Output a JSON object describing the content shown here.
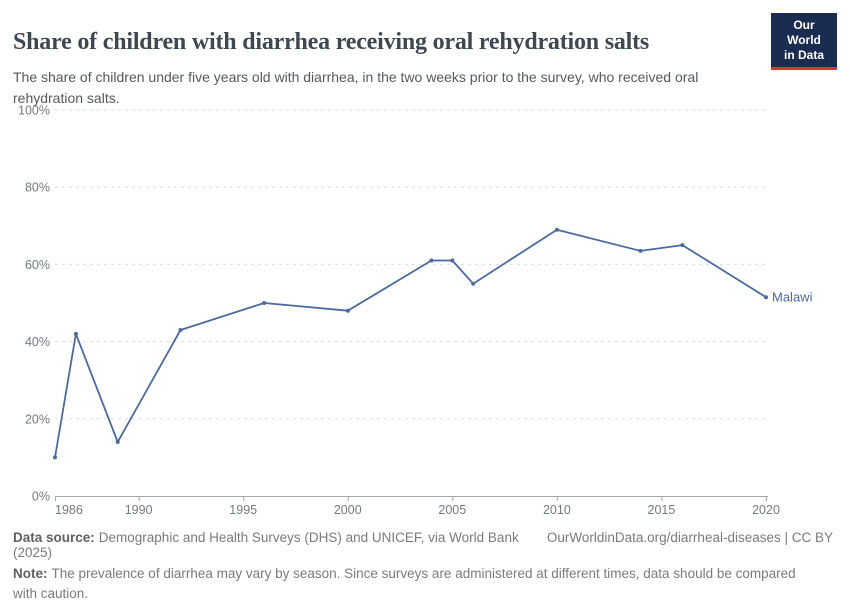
{
  "header": {
    "title": "Share of children with diarrhea receiving oral rehydration salts",
    "subtitle": "The share of children under five years old with diarrhea, in the two weeks prior to the survey, who received oral rehydration salts.",
    "logo_line1": "Our World",
    "logo_line2": "in Data"
  },
  "chart_data": {
    "type": "line",
    "title": "Share of children with diarrhea receiving oral rehydration salts",
    "subtitle": "The share of children under five years old with diarrhea, in the two weeks prior to the survey, who received oral rehydration salts.",
    "series": [
      {
        "name": "Malawi",
        "x": [
          1986,
          1987,
          1989,
          1992,
          1996,
          2000,
          2004,
          2005,
          2006,
          2010,
          2014,
          2016,
          2020
        ],
        "values": [
          10,
          42,
          14,
          43,
          50,
          48,
          61,
          61,
          55,
          69,
          63.5,
          65,
          51.5
        ]
      }
    ],
    "xlabel": "",
    "ylabel": "",
    "xlim": [
      1986,
      2020
    ],
    "ylim": [
      0,
      100
    ],
    "x_ticks": [
      1986,
      1990,
      1995,
      2000,
      2005,
      2010,
      2015,
      2020
    ],
    "y_ticks": [
      0,
      20,
      40,
      60,
      80,
      100
    ],
    "y_tick_suffix": "%",
    "grid": "horizontal-dashed",
    "legend_position": "end-of-line-label",
    "end_label": "Malawi"
  },
  "colors": {
    "line": "#4C6A9C",
    "gridline": "#dcdcdc",
    "axis": "#a7a7a7",
    "logo_background": "#1a2d50",
    "logo_stripe": "#d23a2e"
  },
  "footer": {
    "datasource_label": "Data source:",
    "datasource_text": "Demographic and Health Surveys (DHS) and UNICEF, via World Bank (2025)",
    "link": "OurWorldinData.org/diarrheal-diseases | CC BY",
    "note_label": "Note:",
    "note_text": "The prevalence of diarrhea may vary by season. Since surveys are administered at different times, data should be compared with caution."
  }
}
